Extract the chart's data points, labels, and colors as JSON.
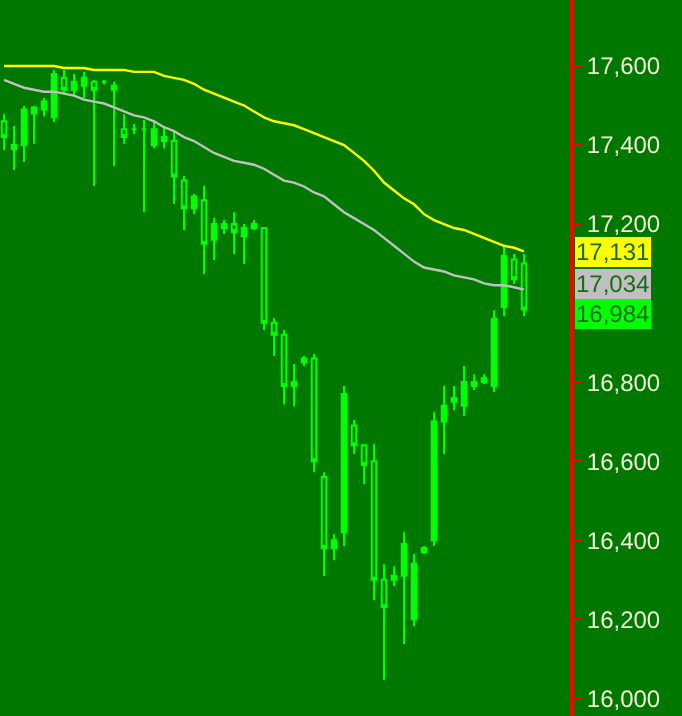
{
  "chart_data": {
    "type": "candlestick",
    "categories": [
      null,
      null,
      null,
      null,
      null,
      null,
      null,
      null,
      null,
      null,
      null,
      null,
      null,
      null,
      null,
      null,
      null,
      null,
      null,
      null,
      null,
      null,
      null,
      null,
      null,
      null,
      null,
      null,
      null,
      null,
      null,
      null,
      null,
      null,
      null,
      null,
      null,
      null,
      null,
      null,
      null,
      null,
      null,
      null,
      null,
      null,
      null,
      null,
      null,
      null,
      null,
      null,
      null
    ],
    "series": [
      {
        "type": "line",
        "color": "#ffff00",
        "values": [
          17600,
          17600,
          17600,
          17600,
          17600,
          17600,
          17595,
          17595,
          17595,
          17590,
          17590,
          17590,
          17590,
          17585,
          17585,
          17585,
          17575,
          17570,
          17565,
          17555,
          17540,
          17530,
          17520,
          17510,
          17500,
          17485,
          17470,
          17460,
          17455,
          17450,
          17440,
          17430,
          17420,
          17410,
          17400,
          17380,
          17360,
          17335,
          17305,
          17285,
          17265,
          17250,
          17225,
          17210,
          17200,
          17190,
          17185,
          17175,
          17165,
          17155,
          17145,
          17140,
          17131
        ]
      },
      {
        "type": "line",
        "color": "#c0c0c0",
        "values": [
          17565,
          17555,
          17545,
          17540,
          17535,
          17535,
          17530,
          17525,
          17515,
          17510,
          17505,
          17495,
          17485,
          17475,
          17470,
          17460,
          17445,
          17435,
          17420,
          17410,
          17395,
          17380,
          17370,
          17360,
          17355,
          17350,
          17340,
          17325,
          17310,
          17305,
          17295,
          17280,
          17270,
          17250,
          17230,
          17215,
          17200,
          17185,
          17165,
          17145,
          17125,
          17105,
          17090,
          17085,
          17080,
          17070,
          17065,
          17060,
          17050,
          17045,
          17045,
          17040,
          17034
        ]
      }
    ],
    "color": "#00ff00",
    "ohlc": [
      [
        17460,
        17478,
        17387,
        17420
      ],
      [
        17400,
        17448,
        17337,
        17390
      ],
      [
        17400,
        17499,
        17357,
        17490
      ],
      [
        17480,
        17499,
        17403,
        17495
      ],
      [
        17490,
        17519,
        17473,
        17510
      ],
      [
        17470,
        17590,
        17458,
        17580
      ],
      [
        17570,
        17590,
        17529,
        17540
      ],
      [
        17540,
        17580,
        17524,
        17560
      ],
      [
        17550,
        17585,
        17519,
        17570
      ],
      [
        17560,
        17565,
        17296,
        17540
      ],
      [
        17560,
        17565,
        17554,
        17560
      ],
      [
        17550,
        17560,
        17347,
        17540
      ],
      [
        17440,
        17478,
        17403,
        17420
      ],
      [
        17440,
        17453,
        17428,
        17440
      ],
      [
        17440,
        17463,
        17230,
        17440
      ],
      [
        17400,
        17463,
        17392,
        17440
      ],
      [
        17420,
        17448,
        17392,
        17410
      ],
      [
        17410,
        17438,
        17251,
        17320
      ],
      [
        17310,
        17322,
        17185,
        17240
      ],
      [
        17240,
        17276,
        17225,
        17270
      ],
      [
        17260,
        17296,
        17073,
        17150
      ],
      [
        17160,
        17215,
        17109,
        17200
      ],
      [
        17190,
        17210,
        17175,
        17200
      ],
      [
        17200,
        17230,
        17124,
        17180
      ],
      [
        17170,
        17200,
        17099,
        17190
      ],
      [
        17190,
        17210,
        17185,
        17200
      ],
      [
        17190,
        17190,
        16932,
        16950
      ],
      [
        16950,
        16962,
        16866,
        16920
      ],
      [
        16920,
        16932,
        16744,
        16790
      ],
      [
        16790,
        16846,
        16739,
        16800
      ],
      [
        16850,
        16866,
        16841,
        16860
      ],
      [
        16860,
        16871,
        16572,
        16600
      ],
      [
        16560,
        16572,
        16309,
        16380
      ],
      [
        16380,
        16415,
        16349,
        16400
      ],
      [
        16420,
        16790,
        16385,
        16770
      ],
      [
        16690,
        16704,
        16618,
        16640
      ],
      [
        16640,
        16643,
        16542,
        16590
      ],
      [
        16600,
        16643,
        16248,
        16300
      ],
      [
        16300,
        16339,
        16046,
        16230
      ],
      [
        16300,
        16334,
        16284,
        16310
      ],
      [
        16310,
        16420,
        16137,
        16390
      ],
      [
        16200,
        16365,
        16182,
        16340
      ],
      [
        16370,
        16385,
        16365,
        16380
      ],
      [
        16400,
        16724,
        16385,
        16700
      ],
      [
        16700,
        16790,
        16618,
        16740
      ],
      [
        16750,
        16790,
        16729,
        16760
      ],
      [
        16740,
        16841,
        16714,
        16800
      ],
      [
        16800,
        16820,
        16780,
        16790
      ],
      [
        16800,
        16820,
        16795,
        16810
      ],
      [
        16790,
        16982,
        16775,
        16960
      ],
      [
        16990,
        17144,
        16967,
        17120
      ],
      [
        17110,
        17124,
        17048,
        17060
      ],
      [
        17100,
        17124,
        16967,
        16984
      ]
    ],
    "annotations": [
      "17,131",
      "17,034",
      "16,984"
    ],
    "ylim": [
      15955,
      17767
    ],
    "yticks": [
      {
        "value": 16000,
        "label": "16,000"
      },
      {
        "value": 16200,
        "label": "16,200"
      },
      {
        "value": 16400,
        "label": "16,400"
      },
      {
        "value": 16600,
        "label": "16,600"
      },
      {
        "value": 16800,
        "label": "16,800"
      },
      {
        "value": 17200,
        "label": "17,200"
      },
      {
        "value": 17400,
        "label": "17,400"
      },
      {
        "value": 17600,
        "label": "17,600"
      }
    ],
    "tick_labels": "y",
    "grid": false
  }
}
